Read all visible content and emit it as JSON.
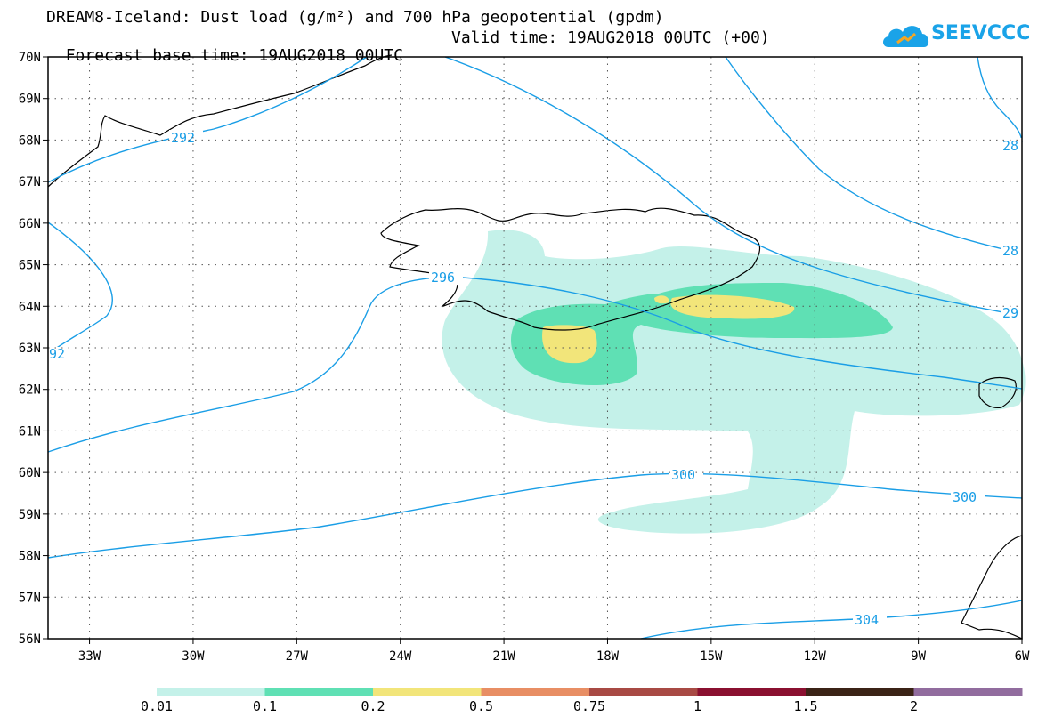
{
  "title": {
    "line1": "DREAM8-Iceland: Dust load (g/m²) and 700 hPa geopotential (gpdm)",
    "line2a": "Forecast base time: 19AUG2018 00UTC",
    "line2b": "Valid time: 19AUG2018 00UTC (+00)"
  },
  "logo": {
    "text": "SEEVCCC",
    "icon": "cloud-icon",
    "color": "#1aa3e8"
  },
  "map": {
    "lat_ticks": [
      "70N",
      "69N",
      "68N",
      "67N",
      "66N",
      "65N",
      "64N",
      "63N",
      "62N",
      "61N",
      "60N",
      "59N",
      "58N",
      "57N",
      "56N"
    ],
    "lon_ticks": [
      "33W",
      "30W",
      "27W",
      "24W",
      "21W",
      "18W",
      "15W",
      "12W",
      "9W",
      "6W"
    ],
    "lat_range": [
      56,
      70
    ],
    "lon_range": [
      -34.2,
      -6
    ],
    "contour_color": "#1a9ee6",
    "contour_labels": [
      "292",
      "296",
      "300",
      "300",
      "304",
      "28",
      "28",
      "29",
      "92"
    ]
  },
  "legend": {
    "labels": [
      "0.01",
      "0.1",
      "0.2",
      "0.5",
      "0.75",
      "1",
      "1.5",
      "2"
    ],
    "colors": [
      "#c4f1e9",
      "#5fe0b4",
      "#f2e57a",
      "#e88e64",
      "#a84a44",
      "#8a1030",
      "#3b2316",
      "#916c9e"
    ]
  }
}
